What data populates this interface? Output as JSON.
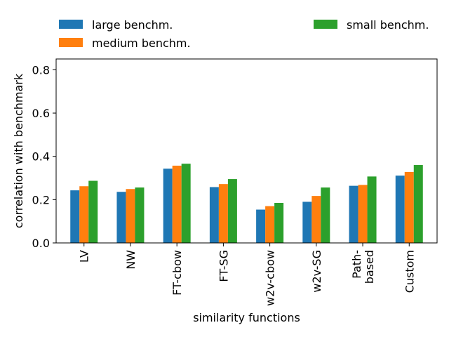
{
  "chart_data": {
    "type": "bar",
    "categories": [
      [
        "LV"
      ],
      [
        "NW"
      ],
      [
        "FT-cbow"
      ],
      [
        "FT-SG"
      ],
      [
        "w2v-cbow"
      ],
      [
        "w2v-SG"
      ],
      [
        "Path-",
        "based"
      ],
      [
        "Custom"
      ]
    ],
    "series": [
      {
        "name": "large benchm.",
        "color": "#1f77b4",
        "values": [
          0.243,
          0.236,
          0.343,
          0.258,
          0.154,
          0.19,
          0.264,
          0.311
        ]
      },
      {
        "name": "medium benchm.",
        "color": "#ff7f0e",
        "values": [
          0.262,
          0.249,
          0.357,
          0.272,
          0.17,
          0.217,
          0.268,
          0.328
        ]
      },
      {
        "name": "small benchm.",
        "color": "#2ca02c",
        "values": [
          0.287,
          0.256,
          0.366,
          0.295,
          0.185,
          0.256,
          0.307,
          0.36
        ]
      }
    ],
    "xlabel": "similarity functions",
    "ylabel": "correlation with benchmark",
    "ylim": [
      0,
      0.85
    ],
    "yticks": [
      0.0,
      0.2,
      0.4,
      0.6,
      0.8
    ],
    "ytick_labels": [
      "0.0",
      "0.2",
      "0.4",
      "0.6",
      "0.8"
    ],
    "grid": false,
    "legend_position": "above plot"
  }
}
